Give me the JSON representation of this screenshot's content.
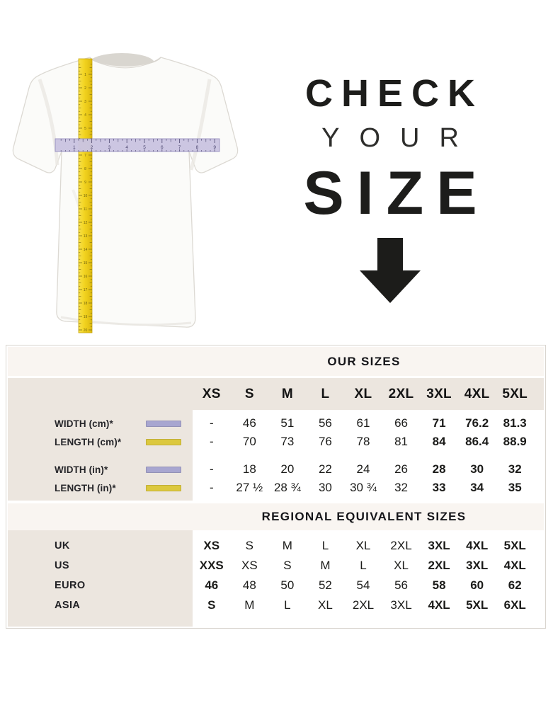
{
  "hero": {
    "heading_line1": "CHECK",
    "heading_line2": "YOUR",
    "heading_line3": "SIZE",
    "arrow_icon": "down-arrow",
    "tshirt_figure": {
      "vertical_tape_icon": "yellow-measuring-tape",
      "vertical_tape_numbers": [
        1,
        2,
        3,
        4,
        5,
        6,
        7,
        8,
        9,
        10,
        11,
        12,
        13,
        14,
        15,
        16,
        17,
        18,
        19,
        20
      ],
      "horizontal_ruler_icon": "lavender-ruler",
      "horizontal_ruler_numbers": [
        1,
        2,
        3,
        4,
        5,
        6,
        7,
        8,
        9
      ]
    }
  },
  "colors": {
    "width-legend": "#a8a6d0",
    "length-legend": "#dcc83e",
    "band_cream": "#f9f5f1",
    "band_beige": "#ece6df",
    "tape_yellow": "#f2d31f",
    "ruler_lavender": "#cbc5e2"
  },
  "chart_data": [
    {
      "type": "table",
      "title": "OUR SIZES",
      "columns": [
        "XS",
        "S",
        "M",
        "L",
        "XL",
        "2XL",
        "3XL",
        "4XL",
        "5XL"
      ],
      "rows": [
        {
          "label": "WIDTH (cm)*",
          "legend": "width-legend",
          "group": "cm",
          "values": [
            "-",
            "46",
            "51",
            "56",
            "61",
            "66",
            "71",
            "76.2",
            "81.3"
          ]
        },
        {
          "label": "LENGTH (cm)*",
          "legend": "length-legend",
          "group": "cm",
          "values": [
            "-",
            "70",
            "73",
            "76",
            "78",
            "81",
            "84",
            "86.4",
            "88.9"
          ]
        },
        {
          "label": "WIDTH (in)*",
          "legend": "width-legend",
          "group": "in",
          "values": [
            "-",
            "18",
            "20",
            "22",
            "24",
            "26",
            "28",
            "30",
            "32"
          ]
        },
        {
          "label": "LENGTH (in)*",
          "legend": "length-legend",
          "group": "in",
          "values": [
            "-",
            "27 ½",
            "28 ¾",
            "30",
            "30 ¾",
            "32",
            "33",
            "34",
            "35"
          ]
        }
      ],
      "bold_value_columns": [
        6,
        7,
        8
      ]
    },
    {
      "type": "table",
      "title": "REGIONAL EQUIVALENT SIZES",
      "columns": [
        "XS",
        "S",
        "M",
        "L",
        "XL",
        "2XL",
        "3XL",
        "4XL",
        "5XL"
      ],
      "rows": [
        {
          "label": "UK",
          "values": [
            "XS",
            "S",
            "M",
            "L",
            "XL",
            "2XL",
            "3XL",
            "4XL",
            "5XL"
          ]
        },
        {
          "label": "US",
          "values": [
            "XXS",
            "XS",
            "S",
            "M",
            "L",
            "XL",
            "2XL",
            "3XL",
            "4XL"
          ]
        },
        {
          "label": "EURO",
          "values": [
            "46",
            "48",
            "50",
            "52",
            "54",
            "56",
            "58",
            "60",
            "62"
          ]
        },
        {
          "label": "ASIA",
          "values": [
            "S",
            "M",
            "L",
            "XL",
            "2XL",
            "3XL",
            "4XL",
            "5XL",
            "6XL"
          ]
        }
      ],
      "bold_value_columns": [
        0,
        6,
        7,
        8
      ]
    }
  ]
}
